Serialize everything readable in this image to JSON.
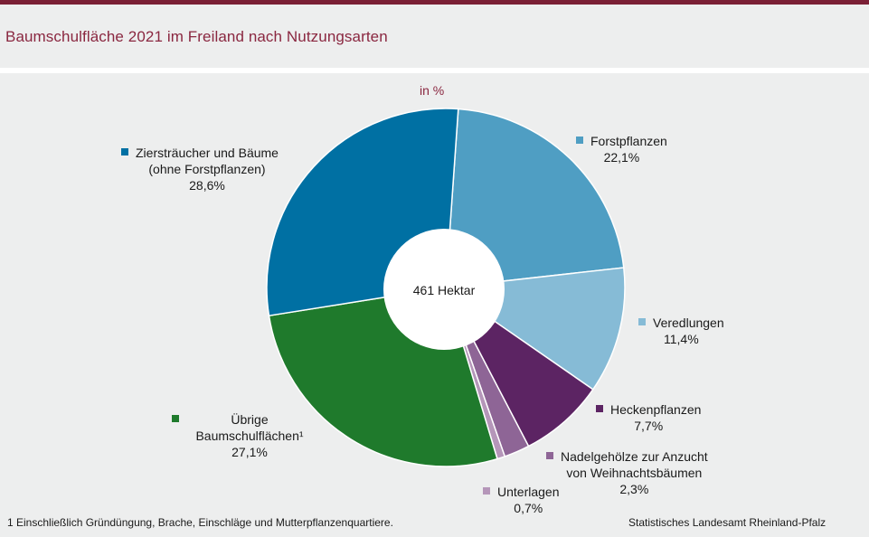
{
  "header": {
    "title": "Baumschulfläche 2021 im Freiland nach Nutzungsarten"
  },
  "chart_data": {
    "type": "pie",
    "title": "Baumschulfläche 2021 im Freiland nach Nutzungsarten",
    "unit": "in %",
    "center_label": "461 Hektar",
    "slices": [
      {
        "key": "forst",
        "label": "Forstpflanzen",
        "value": 22.1,
        "value_label": "22,1%",
        "color": "#4f9ec3"
      },
      {
        "key": "vered",
        "label": "Veredlungen",
        "value": 11.4,
        "value_label": "11,4%",
        "color": "#86bbd6"
      },
      {
        "key": "hecken",
        "label": "Heckenpflanzen",
        "value": 7.7,
        "value_label": "7,7%",
        "color": "#5c2463"
      },
      {
        "key": "nadel",
        "label_line1": "Nadelgehölze zur Anzucht",
        "label_line2": "von Weihnachtsbäumen",
        "value": 2.3,
        "value_label": "2,3%",
        "color": "#8e6596"
      },
      {
        "key": "unter",
        "label": "Unterlagen",
        "value": 0.7,
        "value_label": "0,7%",
        "color": "#b596b9"
      },
      {
        "key": "uebrige",
        "label_line1": "Übrige",
        "label_line2": "Baumschulflächen¹",
        "value": 27.1,
        "value_label": "27,1%",
        "color": "#1f7a2c"
      },
      {
        "key": "zier",
        "label_line1": "Ziersträucher und Bäume",
        "label_line2": "(ohne Forstpflanzen)",
        "value": 28.6,
        "value_label": "28,6%",
        "color": "#0070a3"
      }
    ]
  },
  "footer": {
    "footnote": "1 Einschließlich Gründüngung,  Brache, Einschläge und Mutterpflanzenquartiere.",
    "source": "Statistisches Landesamt Rheinland-Pfalz"
  }
}
